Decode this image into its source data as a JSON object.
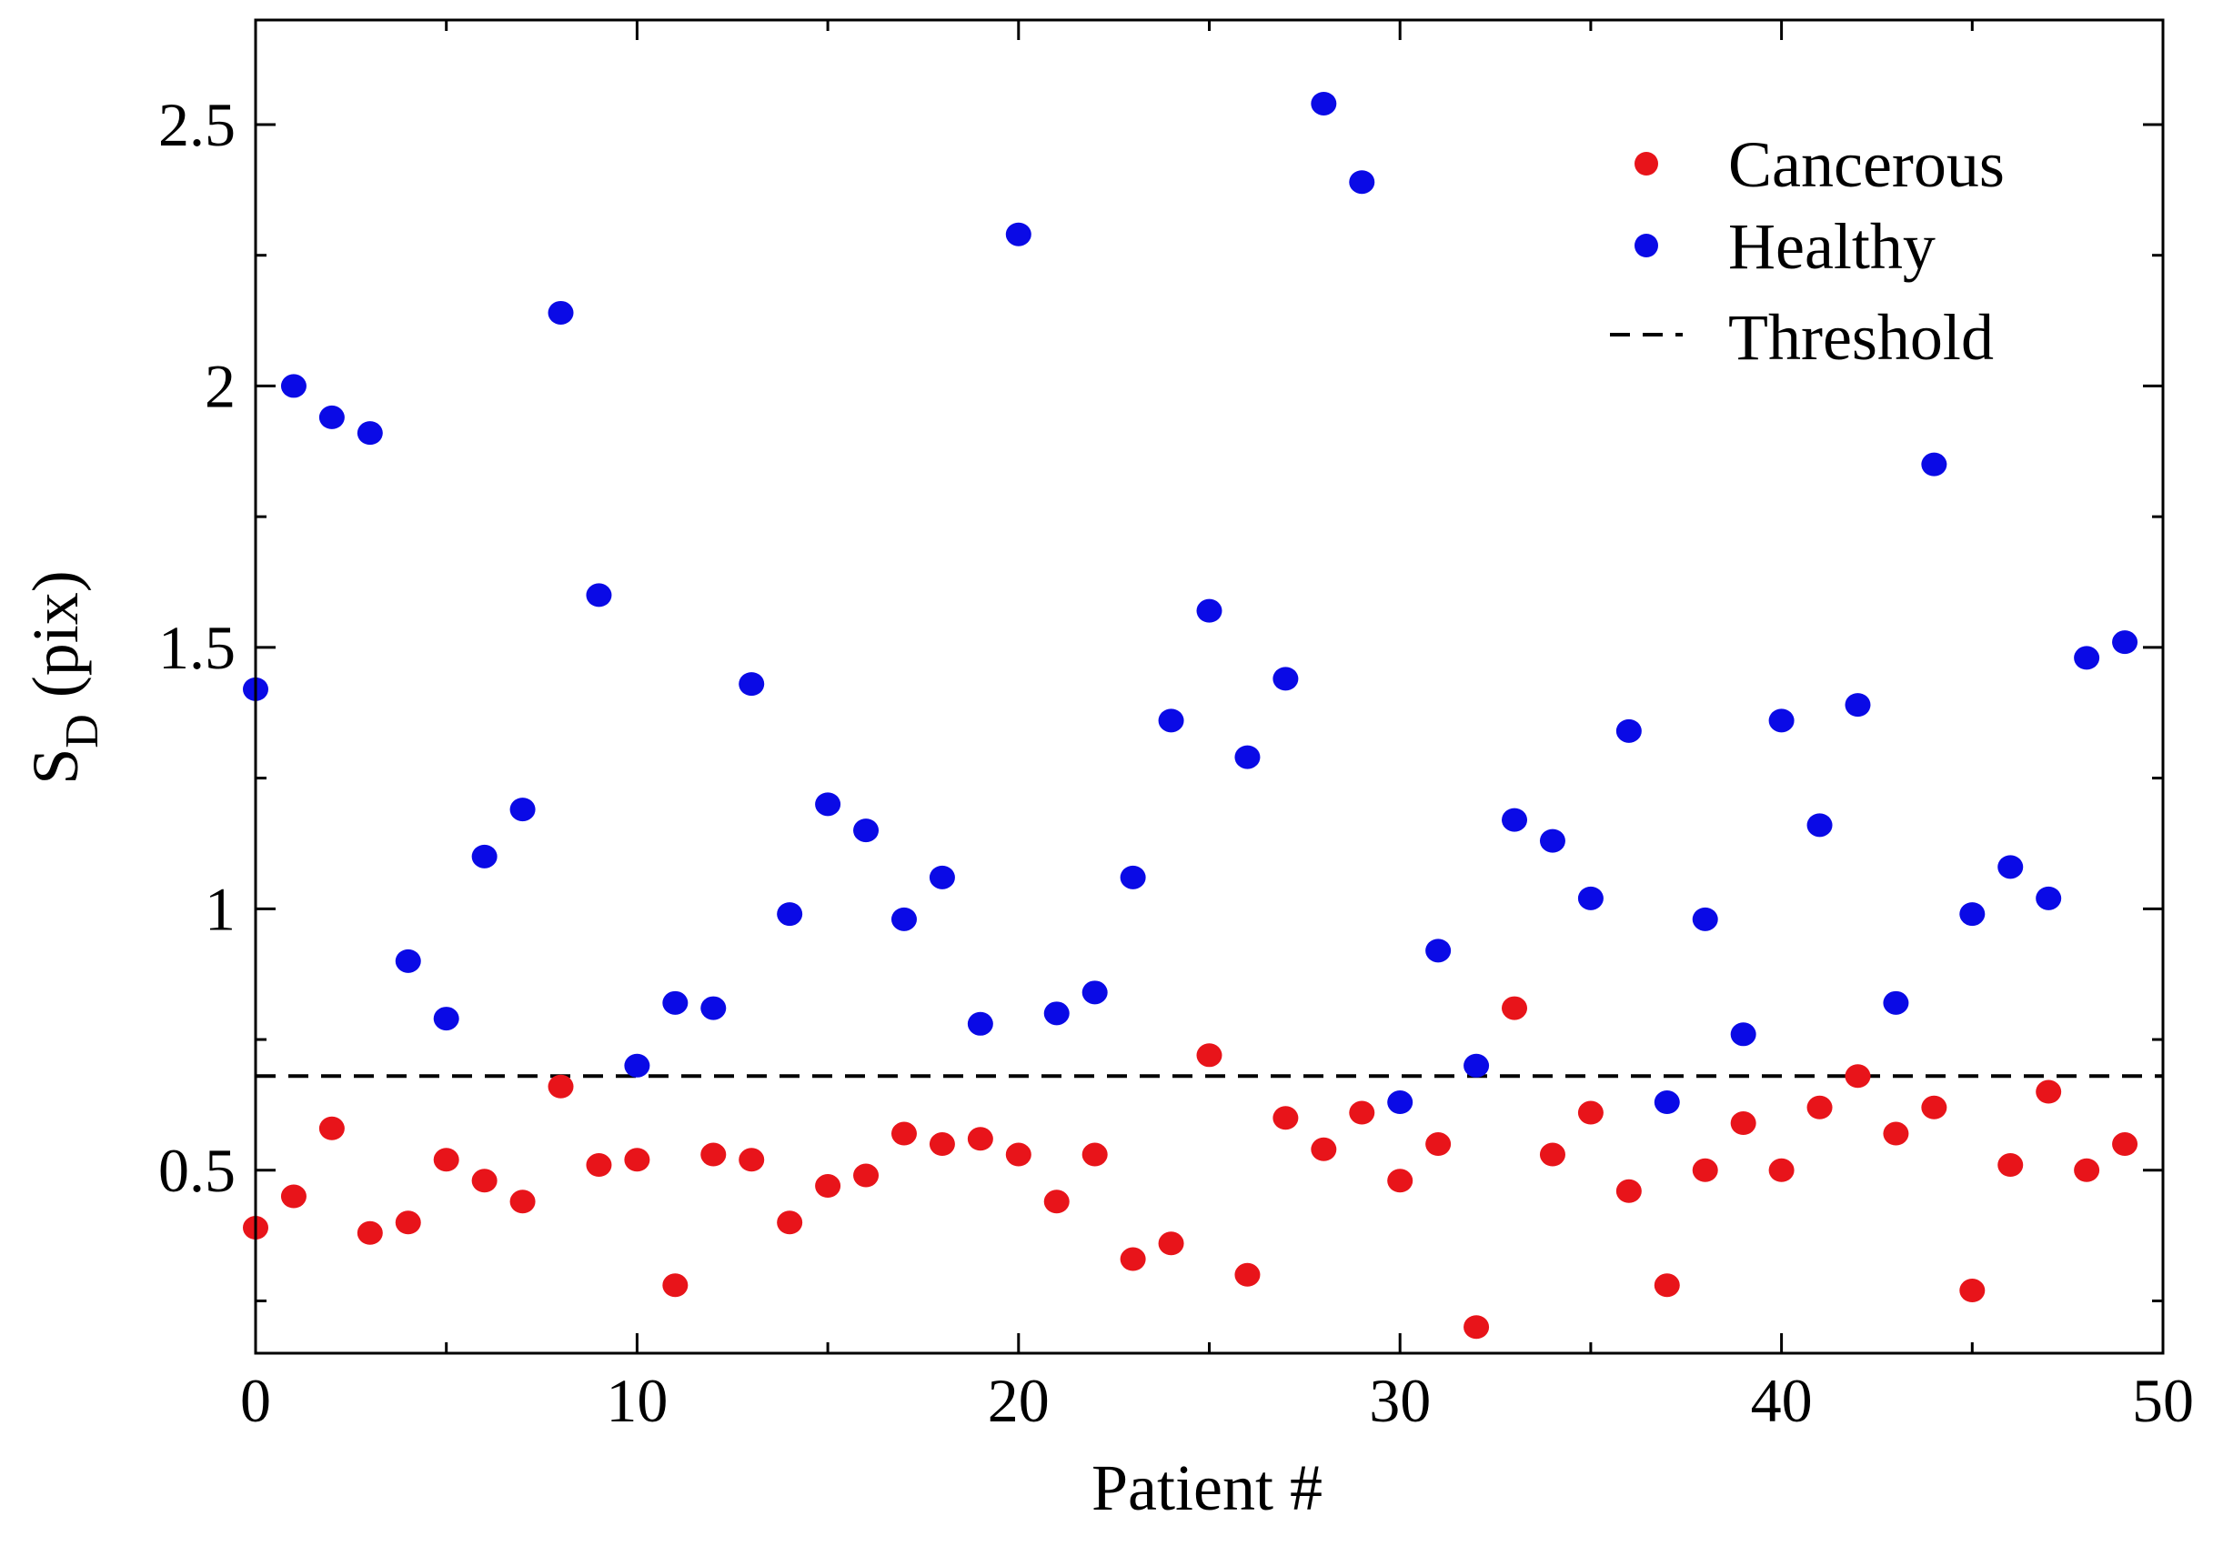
{
  "chart_data": {
    "type": "scatter",
    "title": "",
    "xlabel": "Patient #",
    "ylabel": {
      "main": "S",
      "subscript": "D",
      "unit": " (pix)"
    },
    "xlim": [
      0,
      50
    ],
    "ylim": [
      0.15,
      2.7
    ],
    "x_ticks": [
      0,
      10,
      20,
      30,
      40,
      50
    ],
    "x_tick_labels": [
      "0",
      "10",
      "20",
      "30",
      "40",
      "50"
    ],
    "y_ticks": [
      0.5,
      1,
      1.5,
      2,
      2.5
    ],
    "y_tick_labels": [
      "0.5",
      "1",
      "1.5",
      "2",
      "2.5"
    ],
    "grid": false,
    "legend_position": "top-right",
    "threshold": {
      "name": "Threshold",
      "value": 0.68,
      "style": "dashed",
      "color": "#000000"
    },
    "series": [
      {
        "name": "Cancerous",
        "color": "#e8141a",
        "x": [
          0,
          1,
          2,
          3,
          4,
          5,
          6,
          7,
          8,
          9,
          10,
          11,
          12,
          13,
          14,
          15,
          16,
          17,
          18,
          19,
          20,
          21,
          22,
          23,
          24,
          25,
          26,
          27,
          28,
          29,
          30,
          31,
          32,
          33,
          34,
          35,
          36,
          37,
          38,
          39,
          40,
          41,
          42,
          43,
          44,
          45,
          46,
          47,
          48,
          49
        ],
        "y": [
          0.39,
          0.45,
          0.58,
          0.38,
          0.4,
          0.52,
          0.48,
          0.44,
          0.66,
          0.51,
          0.52,
          0.28,
          0.53,
          0.52,
          0.4,
          0.47,
          0.49,
          0.57,
          0.55,
          0.56,
          0.53,
          0.44,
          0.53,
          0.33,
          0.36,
          0.72,
          0.3,
          0.6,
          0.54,
          0.61,
          0.48,
          0.55,
          0.2,
          0.81,
          0.53,
          0.61,
          0.46,
          0.28,
          0.5,
          0.59,
          0.5,
          0.62,
          0.68,
          0.57,
          0.62,
          0.27,
          0.51,
          0.65,
          0.5,
          0.55
        ]
      },
      {
        "name": "Healthy",
        "color": "#0a0ae6",
        "x": [
          0,
          1,
          2,
          3,
          4,
          5,
          6,
          7,
          8,
          9,
          10,
          11,
          12,
          13,
          14,
          15,
          16,
          17,
          18,
          19,
          20,
          21,
          22,
          23,
          24,
          25,
          26,
          27,
          28,
          29,
          30,
          31,
          32,
          33,
          34,
          35,
          36,
          37,
          38,
          39,
          40,
          41,
          42,
          43,
          44,
          45,
          46,
          47,
          48,
          49
        ],
        "y": [
          1.42,
          2.0,
          1.94,
          1.91,
          0.9,
          0.79,
          1.1,
          1.19,
          2.14,
          1.6,
          0.7,
          0.82,
          0.81,
          1.43,
          0.99,
          1.2,
          1.15,
          0.98,
          1.06,
          0.78,
          2.29,
          0.8,
          0.84,
          1.06,
          1.36,
          1.57,
          1.29,
          1.44,
          2.54,
          2.39,
          0.63,
          0.92,
          0.7,
          1.17,
          1.13,
          1.02,
          1.34,
          0.63,
          0.98,
          0.76,
          1.36,
          1.16,
          1.39,
          0.82,
          1.85,
          0.99,
          1.08,
          1.02,
          1.48,
          1.51
        ]
      }
    ]
  }
}
